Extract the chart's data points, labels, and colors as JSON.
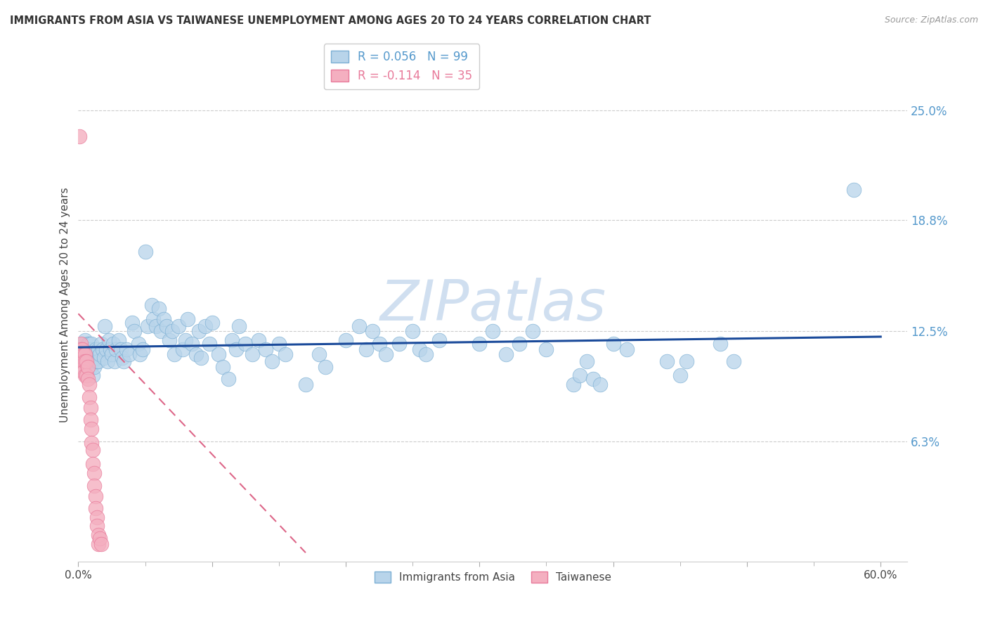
{
  "title": "IMMIGRANTS FROM ASIA VS TAIWANESE UNEMPLOYMENT AMONG AGES 20 TO 24 YEARS CORRELATION CHART",
  "source": "Source: ZipAtlas.com",
  "ylabel": "Unemployment Among Ages 20 to 24 years",
  "xlim": [
    0.0,
    0.62
  ],
  "ylim": [
    -0.005,
    0.285
  ],
  "yticks": [
    0.063,
    0.125,
    0.188,
    0.25
  ],
  "ytick_labels": [
    "6.3%",
    "12.5%",
    "18.8%",
    "25.0%"
  ],
  "xticks": [
    0.0,
    0.1,
    0.2,
    0.3,
    0.4,
    0.5,
    0.6
  ],
  "xtick_labels": [
    "0.0%",
    "",
    "",
    "",
    "",
    "",
    "60.0%"
  ],
  "series1_color": "#b8d4ea",
  "series1_edge": "#7bafd4",
  "series2_color": "#f4afc0",
  "series2_edge": "#e87a9a",
  "trend1_color": "#1a4a9a",
  "trend2_color": "#dd6688",
  "watermark": "ZIPatlas",
  "watermark_color": "#d0dff0",
  "background_color": "#ffffff",
  "blue_scatter": [
    [
      0.003,
      0.118
    ],
    [
      0.004,
      0.112
    ],
    [
      0.004,
      0.105
    ],
    [
      0.005,
      0.12
    ],
    [
      0.005,
      0.108
    ],
    [
      0.006,
      0.115
    ],
    [
      0.006,
      0.1
    ],
    [
      0.007,
      0.118
    ],
    [
      0.007,
      0.108
    ],
    [
      0.008,
      0.112
    ],
    [
      0.008,
      0.118
    ],
    [
      0.009,
      0.105
    ],
    [
      0.009,
      0.115
    ],
    [
      0.01,
      0.11
    ],
    [
      0.01,
      0.118
    ],
    [
      0.011,
      0.108
    ],
    [
      0.011,
      0.1
    ],
    [
      0.012,
      0.112
    ],
    [
      0.012,
      0.105
    ],
    [
      0.013,
      0.115
    ],
    [
      0.013,
      0.11
    ],
    [
      0.014,
      0.108
    ],
    [
      0.015,
      0.115
    ],
    [
      0.015,
      0.108
    ],
    [
      0.016,
      0.112
    ],
    [
      0.017,
      0.118
    ],
    [
      0.018,
      0.115
    ],
    [
      0.019,
      0.11
    ],
    [
      0.02,
      0.128
    ],
    [
      0.021,
      0.115
    ],
    [
      0.022,
      0.108
    ],
    [
      0.023,
      0.12
    ],
    [
      0.024,
      0.115
    ],
    [
      0.025,
      0.112
    ],
    [
      0.026,
      0.118
    ],
    [
      0.027,
      0.108
    ],
    [
      0.028,
      0.115
    ],
    [
      0.03,
      0.12
    ],
    [
      0.032,
      0.115
    ],
    [
      0.033,
      0.11
    ],
    [
      0.034,
      0.108
    ],
    [
      0.036,
      0.115
    ],
    [
      0.038,
      0.112
    ],
    [
      0.04,
      0.13
    ],
    [
      0.042,
      0.125
    ],
    [
      0.045,
      0.118
    ],
    [
      0.046,
      0.112
    ],
    [
      0.048,
      0.115
    ],
    [
      0.05,
      0.17
    ],
    [
      0.052,
      0.128
    ],
    [
      0.055,
      0.14
    ],
    [
      0.056,
      0.132
    ],
    [
      0.058,
      0.128
    ],
    [
      0.06,
      0.138
    ],
    [
      0.062,
      0.125
    ],
    [
      0.064,
      0.132
    ],
    [
      0.066,
      0.128
    ],
    [
      0.068,
      0.12
    ],
    [
      0.07,
      0.125
    ],
    [
      0.072,
      0.112
    ],
    [
      0.075,
      0.128
    ],
    [
      0.078,
      0.115
    ],
    [
      0.08,
      0.12
    ],
    [
      0.082,
      0.132
    ],
    [
      0.085,
      0.118
    ],
    [
      0.088,
      0.112
    ],
    [
      0.09,
      0.125
    ],
    [
      0.092,
      0.11
    ],
    [
      0.095,
      0.128
    ],
    [
      0.098,
      0.118
    ],
    [
      0.1,
      0.13
    ],
    [
      0.105,
      0.112
    ],
    [
      0.108,
      0.105
    ],
    [
      0.112,
      0.098
    ],
    [
      0.115,
      0.12
    ],
    [
      0.118,
      0.115
    ],
    [
      0.12,
      0.128
    ],
    [
      0.125,
      0.118
    ],
    [
      0.13,
      0.112
    ],
    [
      0.135,
      0.12
    ],
    [
      0.14,
      0.115
    ],
    [
      0.145,
      0.108
    ],
    [
      0.15,
      0.118
    ],
    [
      0.155,
      0.112
    ],
    [
      0.17,
      0.095
    ],
    [
      0.18,
      0.112
    ],
    [
      0.185,
      0.105
    ],
    [
      0.2,
      0.12
    ],
    [
      0.21,
      0.128
    ],
    [
      0.215,
      0.115
    ],
    [
      0.22,
      0.125
    ],
    [
      0.225,
      0.118
    ],
    [
      0.23,
      0.112
    ],
    [
      0.24,
      0.118
    ],
    [
      0.25,
      0.125
    ],
    [
      0.255,
      0.115
    ],
    [
      0.26,
      0.112
    ],
    [
      0.27,
      0.12
    ],
    [
      0.3,
      0.118
    ],
    [
      0.31,
      0.125
    ],
    [
      0.32,
      0.112
    ],
    [
      0.33,
      0.118
    ],
    [
      0.34,
      0.125
    ],
    [
      0.35,
      0.115
    ],
    [
      0.37,
      0.095
    ],
    [
      0.375,
      0.1
    ],
    [
      0.38,
      0.108
    ],
    [
      0.385,
      0.098
    ],
    [
      0.39,
      0.095
    ],
    [
      0.4,
      0.118
    ],
    [
      0.41,
      0.115
    ],
    [
      0.44,
      0.108
    ],
    [
      0.45,
      0.1
    ],
    [
      0.455,
      0.108
    ],
    [
      0.48,
      0.118
    ],
    [
      0.49,
      0.108
    ],
    [
      0.58,
      0.205
    ]
  ],
  "pink_scatter": [
    [
      0.001,
      0.235
    ],
    [
      0.002,
      0.118
    ],
    [
      0.002,
      0.115
    ],
    [
      0.003,
      0.115
    ],
    [
      0.003,
      0.108
    ],
    [
      0.003,
      0.105
    ],
    [
      0.004,
      0.112
    ],
    [
      0.004,
      0.108
    ],
    [
      0.004,
      0.102
    ],
    [
      0.005,
      0.112
    ],
    [
      0.005,
      0.108
    ],
    [
      0.005,
      0.1
    ],
    [
      0.006,
      0.108
    ],
    [
      0.006,
      0.1
    ],
    [
      0.007,
      0.105
    ],
    [
      0.007,
      0.098
    ],
    [
      0.008,
      0.095
    ],
    [
      0.008,
      0.088
    ],
    [
      0.009,
      0.082
    ],
    [
      0.009,
      0.075
    ],
    [
      0.01,
      0.07
    ],
    [
      0.01,
      0.062
    ],
    [
      0.011,
      0.058
    ],
    [
      0.011,
      0.05
    ],
    [
      0.012,
      0.045
    ],
    [
      0.012,
      0.038
    ],
    [
      0.013,
      0.032
    ],
    [
      0.013,
      0.025
    ],
    [
      0.014,
      0.02
    ],
    [
      0.014,
      0.015
    ],
    [
      0.015,
      0.01
    ],
    [
      0.015,
      0.005
    ],
    [
      0.016,
      0.008
    ],
    [
      0.017,
      0.005
    ]
  ],
  "blue_trend_x": [
    0.0,
    0.6
  ],
  "blue_trend_y": [
    0.116,
    0.122
  ],
  "pink_trend_x": [
    0.0,
    0.17
  ],
  "pink_trend_y": [
    0.135,
    0.0
  ]
}
